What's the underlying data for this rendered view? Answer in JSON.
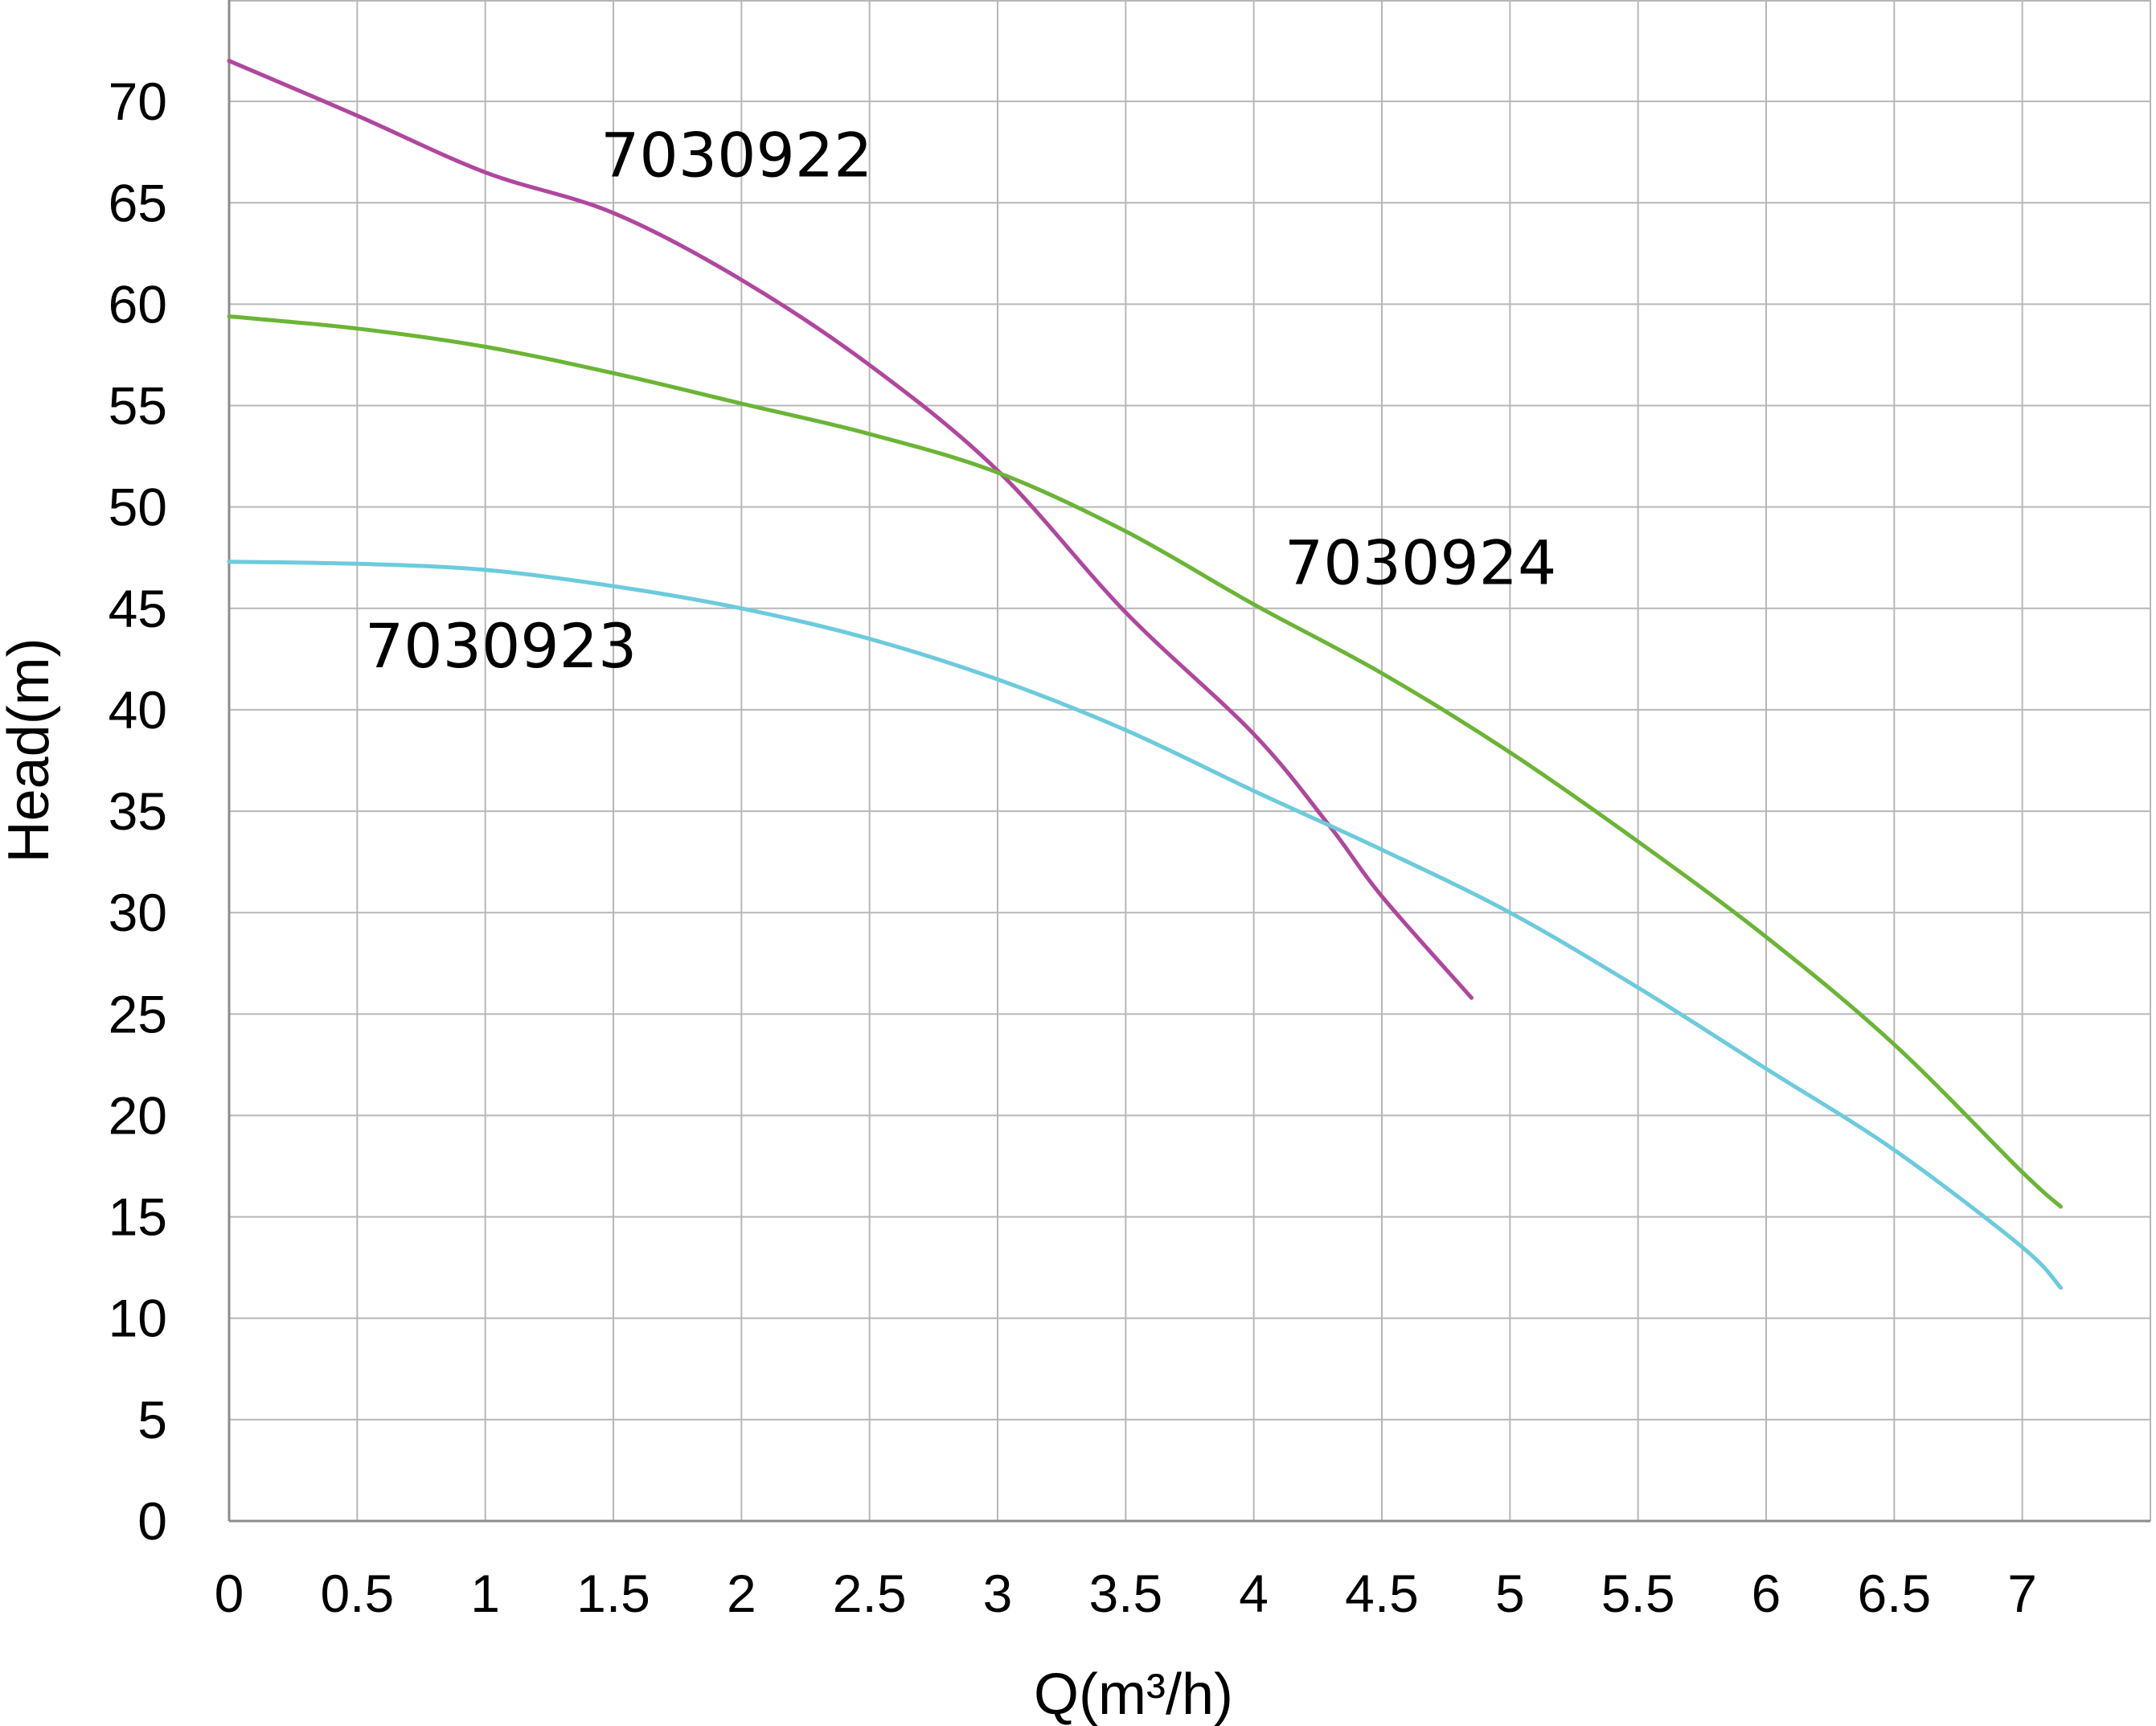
{
  "chart_data": {
    "type": "line",
    "title": "",
    "xlabel": "Q(m³/h)",
    "ylabel": "Head(m)",
    "xlim": [
      0,
      7.5
    ],
    "ylim": [
      0,
      75
    ],
    "x_ticks": [
      0,
      0.5,
      1,
      1.5,
      2,
      2.5,
      3,
      3.5,
      4,
      4.5,
      5,
      5.5,
      6,
      6.5,
      7
    ],
    "x_tick_labels": [
      "0",
      "0.5",
      "1",
      "1.5",
      "2",
      "2.5",
      "3",
      "3.5",
      "4",
      "4.5",
      "5",
      "5.5",
      "6",
      "6.5",
      "7"
    ],
    "y_ticks": [
      0,
      5,
      10,
      15,
      20,
      25,
      30,
      35,
      40,
      45,
      50,
      55,
      60,
      65,
      70
    ],
    "y_tick_labels": [
      "0",
      "5",
      "10",
      "15",
      "20",
      "25",
      "30",
      "35",
      "40",
      "45",
      "50",
      "55",
      "60",
      "65",
      "70"
    ],
    "grid": true,
    "series": [
      {
        "name": "7030922",
        "color": "#b0479e",
        "x": [
          0,
          0.5,
          1,
          1.5,
          2,
          2.5,
          3,
          3.5,
          4,
          4.3,
          4.5,
          4.85
        ],
        "y": [
          72,
          69.3,
          66.5,
          64.5,
          61.2,
          57,
          51.8,
          44.8,
          38.8,
          34.2,
          30.8,
          25.8
        ]
      },
      {
        "name": "7030924",
        "color": "#6bb536",
        "x": [
          0,
          0.5,
          1,
          1.5,
          2,
          2.5,
          3,
          3.5,
          4,
          4.5,
          5,
          5.5,
          6,
          6.5,
          7,
          7.15
        ],
        "y": [
          59.4,
          58.8,
          57.9,
          56.6,
          55.1,
          53.6,
          51.7,
          48.8,
          45.2,
          41.8,
          37.9,
          33.5,
          28.8,
          23.5,
          17.2,
          15.5
        ]
      },
      {
        "name": "7030923",
        "color": "#6ccbdc",
        "x": [
          0,
          0.5,
          1,
          1.5,
          2,
          2.5,
          3,
          3.5,
          4,
          4.5,
          5,
          5.5,
          6,
          6.5,
          7,
          7.15
        ],
        "y": [
          47.3,
          47.2,
          46.9,
          46.1,
          45,
          43.5,
          41.5,
          39,
          36,
          33.1,
          30,
          26.3,
          22.3,
          18.3,
          13.5,
          11.5
        ]
      }
    ],
    "annotations": [
      {
        "text": "7030922",
        "x": 1.45,
        "y": 66.3
      },
      {
        "text": "7030924",
        "x": 4.12,
        "y": 46.2
      },
      {
        "text": "7030923",
        "x": 0.53,
        "y": 42.1
      }
    ]
  }
}
